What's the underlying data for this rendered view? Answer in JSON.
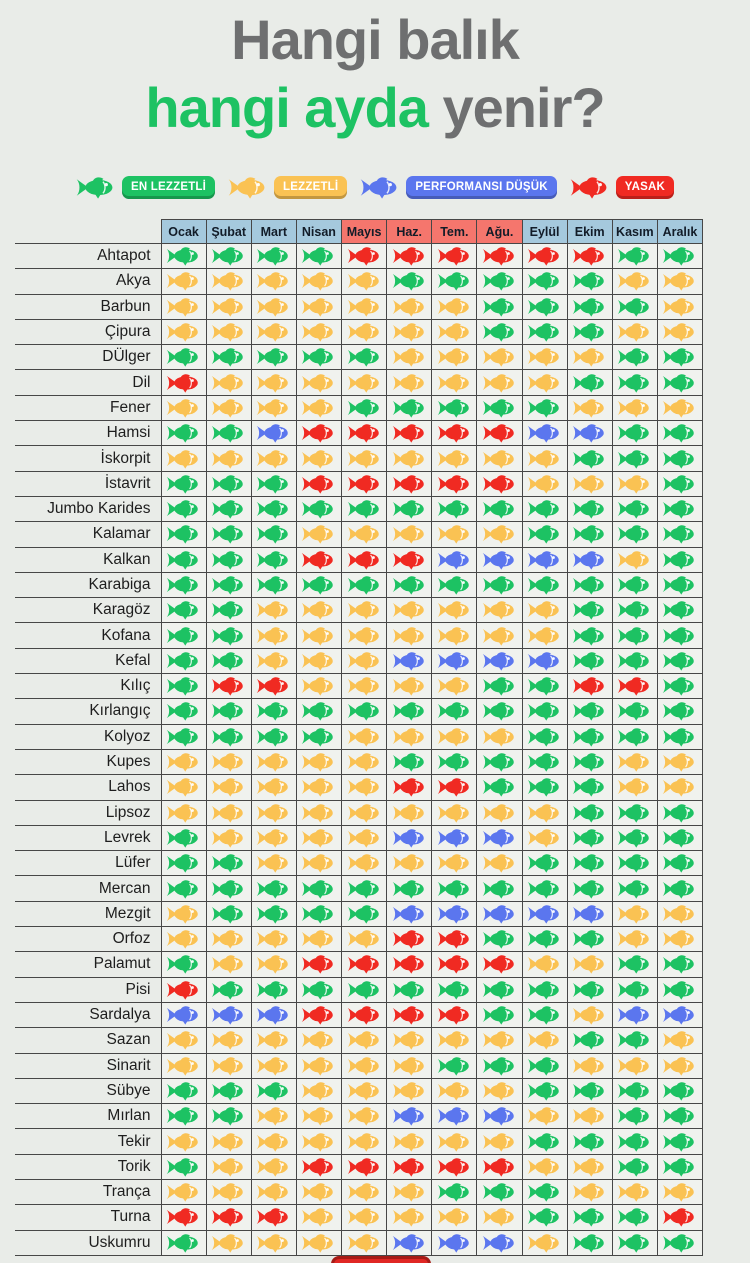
{
  "title": {
    "line1": "Hangi balık",
    "line2_highlight": "hangi ayda",
    "line2_rest": " yenir?"
  },
  "colors": {
    "green": "#1dc263",
    "yellow": "#fac253",
    "blue": "#5b76ee",
    "red": "#f02a22",
    "header_cool": "#a5c9dd",
    "header_warm": "#f5766d",
    "title_green": "#1dc263",
    "footer_badge": "#e02724"
  },
  "legend": [
    {
      "key": "G",
      "label": "EN LEZZETLİ"
    },
    {
      "key": "Y",
      "label": "LEZZETLİ"
    },
    {
      "key": "B",
      "label": "PERFORMANSI DÜŞÜK"
    },
    {
      "key": "R",
      "label": "YASAK"
    }
  ],
  "chart_data": {
    "type": "table",
    "title": "Hangi balık hangi ayda yenir?",
    "legend": {
      "G": "EN LEZZETLİ",
      "Y": "LEZZETLİ",
      "B": "PERFORMANSI DÜŞÜK",
      "R": "YASAK"
    },
    "columns": [
      "Ocak",
      "Şubat",
      "Mart",
      "Nisan",
      "Mayıs",
      "Haz.",
      "Tem.",
      "Ağu.",
      "Eylül",
      "Ekim",
      "Kasım",
      "Aralık"
    ],
    "warm_columns": [
      4,
      5,
      6,
      7
    ],
    "rows": [
      {
        "name": "Ahtapot",
        "cells": "GGGGRRRRRRGG"
      },
      {
        "name": "Akya",
        "cells": "YYYYYGGGGGYY"
      },
      {
        "name": "Barbun",
        "cells": "YYYYYYYGGGGY"
      },
      {
        "name": "Çipura",
        "cells": "YYYYYYYGGGYY"
      },
      {
        "name": "DÜlger",
        "cells": "GGGGGYYYYYGG"
      },
      {
        "name": "Dil",
        "cells": "RYYYYYYYYGGG"
      },
      {
        "name": "Fener",
        "cells": "YYYYGGGGGYYY"
      },
      {
        "name": "Hamsi",
        "cells": "GGBRRRRRBBGG"
      },
      {
        "name": "İskorpit",
        "cells": "YYYYYYYYYGGG"
      },
      {
        "name": "İstavrit",
        "cells": "GGGRRRRRYYYG"
      },
      {
        "name": "Jumbo Karides",
        "cells": "GGGGGGGGGGGG"
      },
      {
        "name": "Kalamar",
        "cells": "GGGYYYYYGGGG"
      },
      {
        "name": "Kalkan",
        "cells": "GGGRRRBBBBYG"
      },
      {
        "name": "Karabiga",
        "cells": "GGGGGGGGGGGG"
      },
      {
        "name": "Karagöz",
        "cells": "GGYYYYYYYGGG"
      },
      {
        "name": "Kofana",
        "cells": "GGYYYYYYYGGG"
      },
      {
        "name": "Kefal",
        "cells": "GGYYYBBBBGGG"
      },
      {
        "name": "Kılıç",
        "cells": "GRRYYYYGGRRG"
      },
      {
        "name": "Kırlangıç",
        "cells": "GGGGGGGGGGGG"
      },
      {
        "name": "Kolyoz",
        "cells": "GGGGYYYYGGGG"
      },
      {
        "name": "Kupes",
        "cells": "YYYYYGGGGGYY"
      },
      {
        "name": "Lahos",
        "cells": "YYYYYRRGGGYY"
      },
      {
        "name": "Lipsoz",
        "cells": "YYYYYYYYYGGG"
      },
      {
        "name": "Levrek",
        "cells": "GYYYYBBBYGGG"
      },
      {
        "name": "Lüfer",
        "cells": "GGYYYYYYGGGG"
      },
      {
        "name": "Mercan",
        "cells": "GGGGGGGGGGGG"
      },
      {
        "name": "Mezgit",
        "cells": "YGGGGBBBBBYY"
      },
      {
        "name": "Orfoz",
        "cells": "YYYYYRRGGGYY"
      },
      {
        "name": "Palamut",
        "cells": "GYYRRRRRYYGG"
      },
      {
        "name": "Pisi",
        "cells": "RGGGGGGGGGGG"
      },
      {
        "name": "Sardalya",
        "cells": "BBBRRRRGGYBB"
      },
      {
        "name": "Sazan",
        "cells": "YYYYYYYYYGGY"
      },
      {
        "name": "Sinarit",
        "cells": "YYYYYYGGGYYY"
      },
      {
        "name": "Sübye",
        "cells": "GGGYYYYYGGGG"
      },
      {
        "name": "Mırlan",
        "cells": "GGYYYBBBYYGG"
      },
      {
        "name": "Tekir",
        "cells": "YYYYYYYYGGGG"
      },
      {
        "name": "Torik",
        "cells": "GYYRRRRRYYGG"
      },
      {
        "name": "Trança",
        "cells": "YYYYYYGGGYYY"
      },
      {
        "name": "Turna",
        "cells": "RRRYYYYYGGGR"
      },
      {
        "name": "Uskumru",
        "cells": "GYYYYBBBYGGG"
      }
    ]
  }
}
